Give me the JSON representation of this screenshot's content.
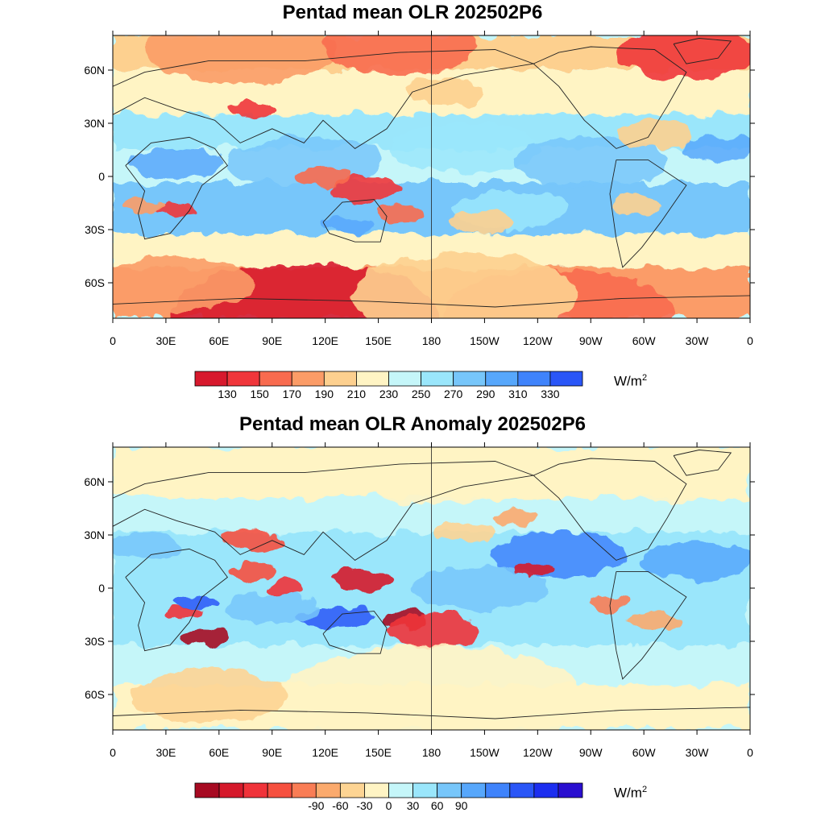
{
  "panels": [
    {
      "title": "Pentad mean OLR 202502P6",
      "lat_ticks": [
        "60N",
        "30N",
        "0",
        "30S",
        "60S"
      ],
      "lon_ticks": [
        "0",
        "30E",
        "60E",
        "90E",
        "120E",
        "150E",
        "180",
        "150W",
        "120W",
        "90W",
        "60W",
        "30W",
        "0"
      ],
      "colorbar": {
        "colors": [
          "#d7192d",
          "#f0363b",
          "#f86b4f",
          "#fb9c67",
          "#fdd08f",
          "#fff4c4",
          "#c5f6f9",
          "#9ae6fb",
          "#77c6fa",
          "#57a7fb",
          "#3f83fb",
          "#2a56f7"
        ],
        "labels": [
          "130",
          "150",
          "170",
          "190",
          "210",
          "230",
          "250",
          "270",
          "290",
          "310",
          "330"
        ],
        "unit": "W/m",
        "unit_sup": "2"
      }
    },
    {
      "title": "Pentad mean OLR Anomaly 202502P6",
      "lat_ticks": [
        "60N",
        "30N",
        "0",
        "30S",
        "60S"
      ],
      "lon_ticks": [
        "0",
        "30E",
        "60E",
        "90E",
        "120E",
        "150E",
        "180",
        "150W",
        "120W",
        "90W",
        "60W",
        "30W",
        "0"
      ],
      "colorbar": {
        "colors": [
          "#a70a22",
          "#d5192b",
          "#f0333a",
          "#f6503f",
          "#f97d55",
          "#fbaa6d",
          "#fdd493",
          "#fff4c4",
          "#c5f6f9",
          "#9ae6fb",
          "#77c6fa",
          "#57a7fb",
          "#3f83fb",
          "#2a56f7",
          "#1c2ef0",
          "#2a0fd0"
        ],
        "labels": [
          "-90",
          "-60",
          "-30",
          "0",
          "30",
          "60",
          "90"
        ],
        "unit": "W/m",
        "unit_sup": "2"
      }
    }
  ]
}
